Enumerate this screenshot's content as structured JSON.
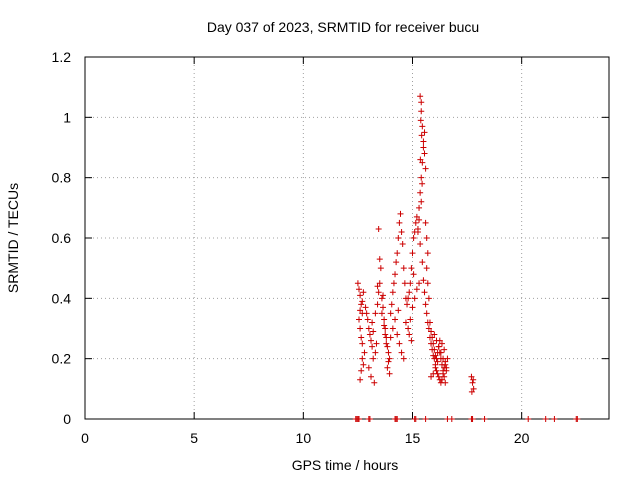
{
  "chart_data": {
    "type": "scatter",
    "title": "Day 037 of 2023, SRMTID for receiver bucu",
    "xlabel": "GPS time / hours",
    "ylabel": "SRMTID / TECUs",
    "xlim": [
      0,
      24
    ],
    "ylim": [
      0,
      1.2
    ],
    "xticks": [
      0,
      5,
      10,
      15,
      20
    ],
    "xtick_labels": [
      "0",
      "5",
      "10",
      "15",
      "20"
    ],
    "yticks": [
      0,
      0.2,
      0.4,
      0.6,
      0.8,
      1.0,
      1.2
    ],
    "ytick_labels": [
      "0",
      "0.2",
      "0.4",
      "0.6",
      "0.8",
      "1",
      "1.2"
    ],
    "grid": true,
    "marker": "+",
    "colors": {
      "points": "#cc0000",
      "grid": "#a0a0a0",
      "axes": "#000000"
    },
    "series": [
      {
        "name": "SRMTID",
        "x": [
          12.5,
          12.55,
          12.6,
          12.65,
          12.7,
          12.55,
          12.6,
          12.7,
          12.75,
          12.6,
          12.65,
          12.7,
          12.8,
          12.75,
          12.6,
          12.65,
          12.7,
          12.85,
          12.9,
          12.95,
          13.0,
          13.05,
          13.1,
          13.15,
          13.2,
          13.0,
          13.1,
          13.25,
          13.3,
          13.35,
          13.2,
          13.15,
          13.3,
          13.4,
          13.45,
          13.5,
          13.55,
          13.5,
          13.45,
          13.4,
          13.6,
          13.65,
          13.7,
          13.75,
          13.8,
          13.85,
          13.9,
          13.95,
          13.6,
          13.7,
          13.75,
          13.8,
          13.9,
          13.85,
          13.65,
          13.95,
          14.0,
          14.05,
          14.1,
          14.15,
          14.2,
          14.25,
          14.3,
          14.35,
          14.4,
          14.45,
          14.5,
          14.55,
          14.6,
          14.65,
          14.7,
          14.0,
          14.1,
          14.2,
          14.3,
          14.4,
          14.5,
          14.6,
          14.7,
          14.35,
          14.75,
          14.8,
          14.85,
          14.9,
          14.95,
          15.0,
          15.05,
          15.1,
          15.15,
          15.2,
          15.25,
          14.8,
          14.9,
          15.0,
          15.1,
          15.2,
          15.3,
          14.85,
          14.95,
          15.05,
          15.3,
          15.35,
          15.4,
          15.45,
          15.5,
          15.55,
          15.6,
          15.65,
          15.7,
          15.35,
          15.4,
          15.45,
          15.5,
          15.55,
          15.6,
          15.65,
          15.7,
          15.75,
          15.4,
          15.38,
          15.42,
          15.36,
          15.44,
          15.4,
          15.3,
          15.25,
          15.35,
          15.45,
          15.5,
          15.55,
          15.6,
          15.65,
          15.7,
          15.75,
          15.8,
          15.85,
          15.9,
          15.95,
          16.0,
          16.05,
          16.1,
          16.15,
          16.2,
          16.25,
          16.3,
          16.35,
          16.4,
          16.45,
          16.5,
          15.8,
          15.85,
          15.9,
          15.95,
          16.0,
          16.05,
          16.1,
          16.15,
          16.2,
          16.25,
          16.3,
          16.35,
          16.4,
          16.45,
          16.5,
          16.55,
          16.0,
          16.1,
          16.2,
          16.3,
          16.4,
          16.5,
          16.55,
          16.6,
          16.45,
          16.35,
          16.25,
          16.15,
          16.05,
          15.95,
          15.85,
          17.7,
          17.75,
          17.8,
          17.72,
          17.78,
          12.4,
          12.45,
          12.5,
          12.55,
          13.0,
          13.05,
          14.2,
          14.25,
          14.3,
          15.1,
          15.15,
          15.6,
          16.6,
          16.8,
          17.7,
          17.75,
          18.3,
          20.3,
          21.1,
          21.5,
          22.5,
          22.55
        ],
        "y": [
          0.45,
          0.43,
          0.41,
          0.38,
          0.35,
          0.33,
          0.36,
          0.39,
          0.42,
          0.3,
          0.27,
          0.25,
          0.22,
          0.18,
          0.13,
          0.16,
          0.2,
          0.37,
          0.35,
          0.33,
          0.3,
          0.28,
          0.26,
          0.24,
          0.2,
          0.17,
          0.14,
          0.12,
          0.22,
          0.25,
          0.29,
          0.32,
          0.35,
          0.38,
          0.42,
          0.45,
          0.5,
          0.53,
          0.63,
          0.44,
          0.4,
          0.37,
          0.33,
          0.3,
          0.27,
          0.24,
          0.22,
          0.2,
          0.35,
          0.31,
          0.28,
          0.25,
          0.19,
          0.17,
          0.41,
          0.15,
          0.35,
          0.38,
          0.42,
          0.45,
          0.48,
          0.52,
          0.55,
          0.6,
          0.65,
          0.68,
          0.62,
          0.58,
          0.5,
          0.45,
          0.4,
          0.27,
          0.3,
          0.33,
          0.28,
          0.25,
          0.22,
          0.2,
          0.32,
          0.36,
          0.38,
          0.4,
          0.42,
          0.45,
          0.5,
          0.55,
          0.6,
          0.62,
          0.65,
          0.67,
          0.63,
          0.3,
          0.33,
          0.37,
          0.4,
          0.43,
          0.45,
          0.28,
          0.26,
          0.48,
          0.7,
          0.75,
          0.8,
          0.85,
          0.9,
          0.95,
          0.65,
          0.6,
          0.55,
          1.07,
          1.05,
          0.97,
          0.92,
          0.88,
          0.83,
          0.5,
          0.45,
          0.4,
          1.02,
          0.99,
          0.94,
          0.86,
          0.78,
          0.72,
          0.66,
          0.62,
          0.58,
          0.52,
          0.46,
          0.42,
          0.38,
          0.35,
          0.32,
          0.3,
          0.27,
          0.25,
          0.23,
          0.21,
          0.2,
          0.18,
          0.16,
          0.15,
          0.14,
          0.13,
          0.12,
          0.13,
          0.15,
          0.17,
          0.19,
          0.32,
          0.29,
          0.27,
          0.25,
          0.23,
          0.21,
          0.2,
          0.22,
          0.24,
          0.26,
          0.2,
          0.18,
          0.16,
          0.14,
          0.12,
          0.17,
          0.28,
          0.26,
          0.24,
          0.22,
          0.2,
          0.18,
          0.16,
          0.2,
          0.23,
          0.25,
          0.22,
          0.19,
          0.17,
          0.15,
          0.14,
          0.14,
          0.12,
          0.1,
          0.09,
          0.13,
          0,
          0,
          0,
          0,
          0,
          0,
          0,
          0,
          0,
          0,
          0,
          0,
          0,
          0,
          0,
          0,
          0,
          0,
          0,
          0,
          0,
          0
        ]
      }
    ]
  }
}
